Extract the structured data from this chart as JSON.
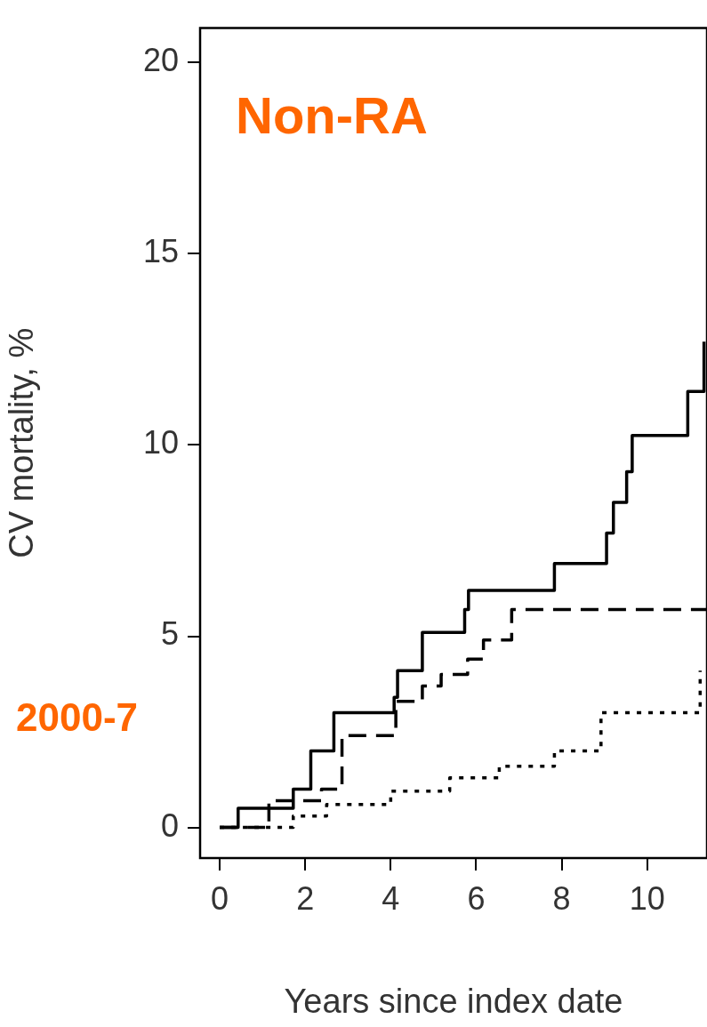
{
  "chart_data": {
    "type": "step",
    "title": "Non-RA",
    "xlabel": "Years since index date",
    "ylabel": "CV mortality, %",
    "annotations": [
      "2000-7"
    ],
    "xlim": [
      -0.46,
      11.4
    ],
    "xticks": [
      0,
      2,
      4,
      6,
      8,
      10
    ],
    "ylim": [
      -0.8,
      20.9
    ],
    "yticks": [
      0,
      5,
      10,
      15,
      20
    ],
    "grid": false,
    "legend": false,
    "marker": "none",
    "series": [
      {
        "color": "#000000",
        "line_style": "solid",
        "x": [
          0,
          0.43,
          1.72,
          2.13,
          2.67,
          4.08,
          4.16,
          4.74,
          5.73,
          5.82,
          7.83,
          9.05,
          9.21,
          9.52,
          9.65,
          10.95,
          11.33
        ],
        "values": [
          0,
          0.5,
          1.0,
          2.0,
          3.0,
          3.4,
          4.1,
          5.1,
          5.7,
          6.2,
          6.9,
          7.7,
          8.5,
          9.3,
          10.25,
          11.4,
          12.7
        ]
      },
      {
        "color": "#000000",
        "line_style": "dashed",
        "x": [
          0,
          1.15,
          2.38,
          2.86,
          4.12,
          4.74,
          5.18,
          5.8,
          6.17,
          6.83,
          11.4
        ],
        "values": [
          0,
          0.7,
          1.0,
          2.4,
          3.3,
          3.7,
          4.0,
          4.4,
          4.9,
          5.7,
          5.7
        ]
      },
      {
        "color": "#000000",
        "line_style": "dotted",
        "x": [
          0,
          1.72,
          2.5,
          4.0,
          5.38,
          6.54,
          7.83,
          8.92,
          11.24
        ],
        "values": [
          0,
          0.3,
          0.6,
          0.95,
          1.3,
          1.6,
          2.0,
          3.0,
          4.1
        ]
      }
    ]
  }
}
